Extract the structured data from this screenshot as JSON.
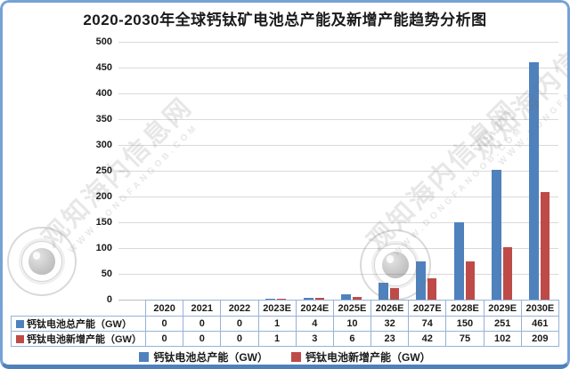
{
  "title": "2020-2030年全球钙钛矿电池总产能及新增产能趋势分析图",
  "watermark": {
    "brand": "观知海内信息网",
    "url": "WWW.DONGFANGOB.COM"
  },
  "chart_data": {
    "type": "bar",
    "title": "2020-2030年全球钙钛矿电池总产能及新增产能趋势分析图",
    "categories": [
      "2020",
      "2021",
      "2022",
      "2023E",
      "2024E",
      "2025E",
      "2026E",
      "2027E",
      "2028E",
      "2029E",
      "2030E"
    ],
    "series": [
      {
        "name": "钙钛电池总产能（GW）",
        "color": "#4F81BD",
        "values": [
          0,
          0,
          0,
          1,
          4,
          10,
          32,
          74,
          150,
          251,
          461
        ]
      },
      {
        "name": "钙钛电池新增产能（GW）",
        "color": "#BE4B48",
        "values": [
          0,
          0,
          0,
          1,
          3,
          6,
          23,
          42,
          75,
          102,
          209
        ]
      }
    ],
    "xlabel": "",
    "ylabel": "",
    "ylim": [
      0,
      500
    ],
    "ytick_interval": 50,
    "grid": true,
    "legend_position": "bottom",
    "has_data_table": true
  }
}
